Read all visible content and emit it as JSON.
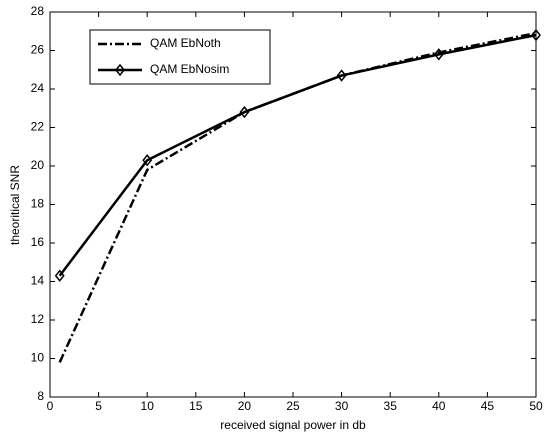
{
  "chart_data": {
    "type": "line",
    "x_label": "received signal power in db",
    "y_label": "theoritical SNR",
    "x": [
      1,
      10,
      20,
      30,
      40,
      50
    ],
    "series": [
      {
        "name": "QAM EbNoth",
        "color": "#000000",
        "style": "dashdot",
        "marker": "none",
        "values": [
          9.8,
          19.8,
          22.8,
          24.7,
          25.9,
          26.9
        ]
      },
      {
        "name": "QAM EbNosim",
        "color": "#000000",
        "style": "solid",
        "marker": "diamond",
        "values": [
          14.3,
          20.3,
          22.8,
          24.7,
          25.8,
          26.8
        ]
      }
    ],
    "xlim": [
      0,
      50
    ],
    "xticks": [
      0,
      5,
      10,
      15,
      20,
      25,
      30,
      35,
      40,
      45,
      50
    ],
    "ylim": [
      8,
      28
    ],
    "yticks": [
      8,
      10,
      12,
      14,
      16,
      18,
      20,
      22,
      24,
      26,
      28
    ],
    "grid": false,
    "legend": "upper-left"
  }
}
